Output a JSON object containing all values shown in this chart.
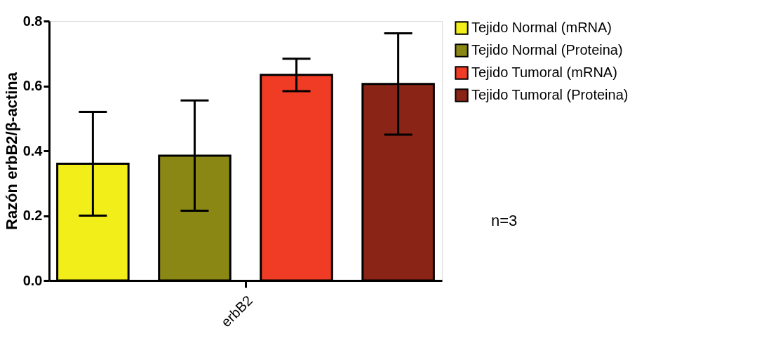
{
  "chart_data": {
    "type": "bar",
    "ylabel": "Razón erbB2/β-actina",
    "categories": [
      "erbB2"
    ],
    "series": [
      {
        "name": "Tejido Normal (mRNA)",
        "color": "#f2ee1a",
        "values": [
          0.36
        ],
        "errors": [
          0.16
        ]
      },
      {
        "name": "Tejido Normal (Proteina)",
        "color": "#8a8714",
        "values": [
          0.385
        ],
        "errors": [
          0.17
        ]
      },
      {
        "name": "Tejido Tumoral (mRNA)",
        "color": "#f03c24",
        "values": [
          0.634
        ],
        "errors": [
          0.05
        ]
      },
      {
        "name": "Tejido Tumoral (Proteina)",
        "color": "#8a2416",
        "values": [
          0.606
        ],
        "errors": [
          0.156
        ]
      }
    ],
    "ylim": [
      0,
      0.8
    ],
    "yticks": [
      {
        "value": 0,
        "label": "0.0"
      },
      0.2,
      0.4,
      0.6,
      0.8
    ],
    "grid": false,
    "legend": "top right",
    "annotations": [
      "n=3"
    ]
  }
}
